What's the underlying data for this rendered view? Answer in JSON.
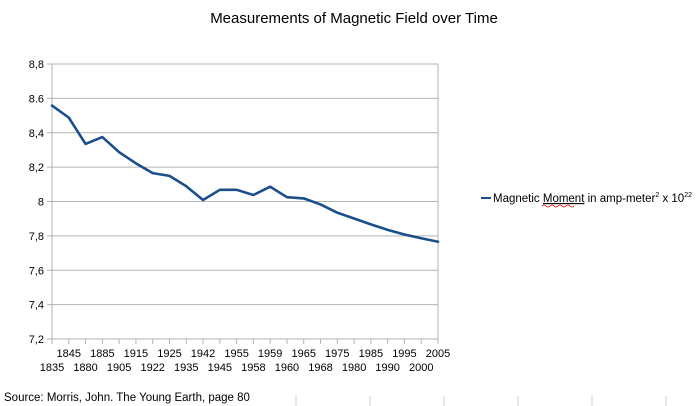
{
  "chart_data": {
    "type": "line",
    "title": "Measurements of Magnetic Field over Time",
    "xlabel": "",
    "ylabel": "",
    "ylim": [
      7.2,
      8.8
    ],
    "yticks": [
      "7,2",
      "7,4",
      "7,6",
      "7,8",
      "8",
      "8,2",
      "8,4",
      "8.6",
      "8,8"
    ],
    "ytick_values": [
      7.2,
      7.4,
      7.6,
      7.8,
      8.0,
      8.2,
      8.4,
      8.6,
      8.8
    ],
    "grid": true,
    "legend_position": "right",
    "categories": [
      "1835",
      "1845",
      "1880",
      "1885",
      "1905",
      "1915",
      "1922",
      "1925",
      "1935",
      "1942",
      "1945",
      "1955",
      "1958",
      "1959",
      "1960",
      "1965",
      "1968",
      "1975",
      "1980",
      "1985",
      "1990",
      "1995",
      "2000",
      "2005"
    ],
    "series": [
      {
        "name": "Magnetic Moment in amp-meter² x 10²²",
        "color": "#1a4f8b",
        "values": [
          8.558,
          8.488,
          8.335,
          8.375,
          8.287,
          8.222,
          8.165,
          8.149,
          8.089,
          8.009,
          8.068,
          8.068,
          8.038,
          8.086,
          8.025,
          8.018,
          7.983,
          7.935,
          7.901,
          7.867,
          7.835,
          7.808,
          7.786,
          7.766
        ]
      }
    ]
  },
  "legend": {
    "prefix": "Magnetic ",
    "underlined": "Moment",
    "middle": " in amp-meter",
    "sup1": "2",
    "times": " x 10",
    "sup2": "22"
  },
  "source": "Source: Morris, John. The Young Earth, page 80"
}
